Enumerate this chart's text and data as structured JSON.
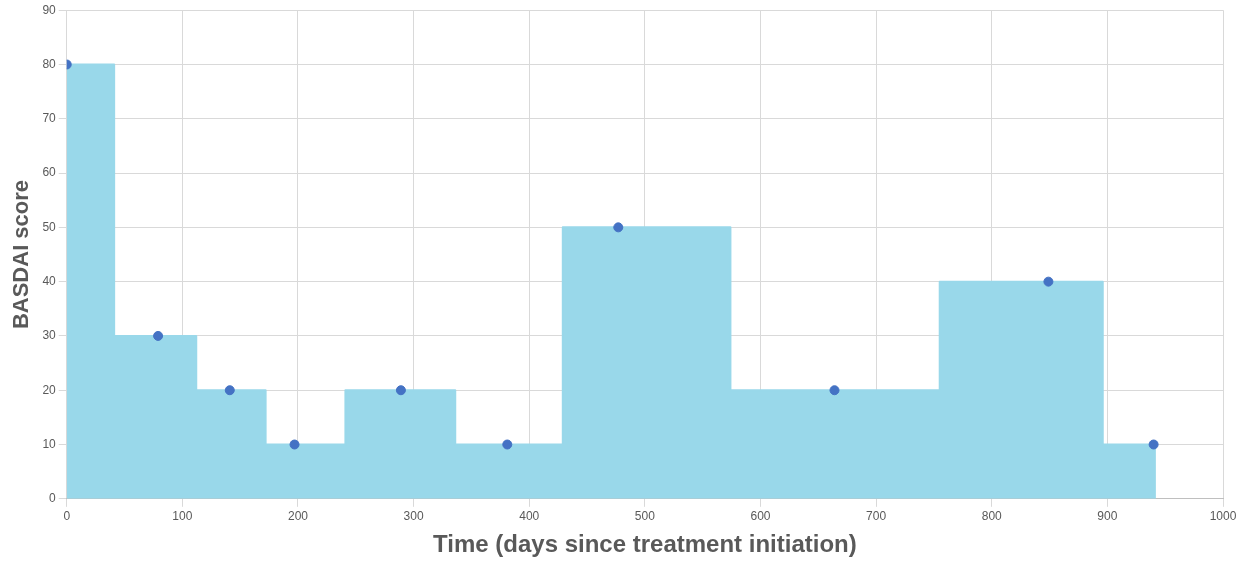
{
  "chart_data": {
    "type": "area",
    "xlabel": "Time (days since treatment initiation)",
    "ylabel": "BASDAI score",
    "series": [
      {
        "type": "area",
        "color": "#99d8ea",
        "x": [
          0,
          41,
          41,
          112,
          112,
          172,
          172,
          241,
          241,
          336,
          336,
          429,
          429,
          574,
          574,
          755,
          755,
          896,
          896,
          942
        ],
        "values": [
          80,
          80,
          30,
          30,
          20,
          20,
          10,
          10,
          20,
          20,
          10,
          10,
          50,
          50,
          20,
          20,
          40,
          40,
          10,
          10
        ],
        "marker": "none"
      },
      {
        "type": "scatter",
        "color": "#4472c4",
        "x": [
          0,
          79,
          141,
          197,
          289,
          381,
          477,
          664,
          849,
          940
        ],
        "values": [
          80,
          30,
          20,
          10,
          20,
          10,
          50,
          20,
          40,
          10
        ],
        "marker": "circle"
      }
    ],
    "xlim": [
      0,
      1000
    ],
    "xticks": [
      0,
      100,
      200,
      300,
      400,
      500,
      600,
      700,
      800,
      900,
      1000
    ],
    "ylim": [
      0,
      90
    ],
    "yticks": [
      0,
      10,
      20,
      30,
      40,
      50,
      60,
      70,
      80,
      90
    ],
    "grid": true,
    "legend": false
  }
}
